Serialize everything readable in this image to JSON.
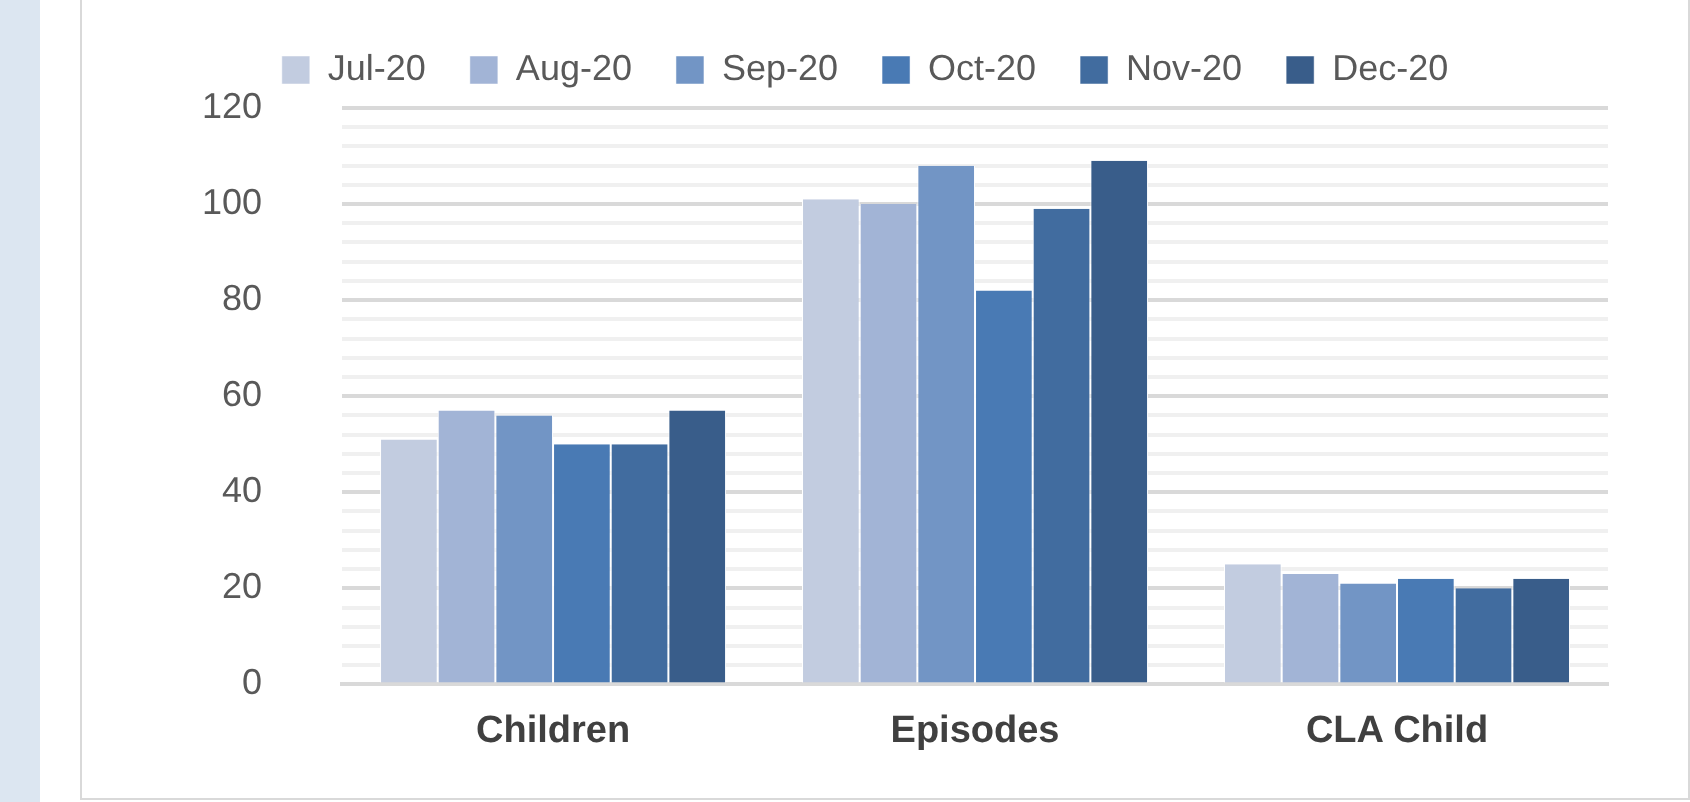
{
  "chart_data": {
    "type": "bar",
    "categories": [
      "Children",
      "Episodes",
      "CLA Child"
    ],
    "series": [
      {
        "name": "Jul-20",
        "color": "#c2cce0",
        "values": [
          51,
          101,
          25
        ]
      },
      {
        "name": "Aug-20",
        "color": "#a2b4d6",
        "values": [
          57,
          100,
          23
        ]
      },
      {
        "name": "Sep-20",
        "color": "#7295c5",
        "values": [
          56,
          108,
          21
        ]
      },
      {
        "name": "Oct-20",
        "color": "#497ab4",
        "values": [
          50,
          82,
          22
        ]
      },
      {
        "name": "Nov-20",
        "color": "#416c9f",
        "values": [
          50,
          99,
          20
        ]
      },
      {
        "name": "Dec-20",
        "color": "#395d8a",
        "values": [
          57,
          109,
          22
        ]
      }
    ],
    "ylim": [
      0,
      120
    ],
    "yticks": [
      0,
      {
        "value": 4,
        "label": null
      },
      {
        "value": 8,
        "label": null
      },
      {
        "value": 12,
        "label": null
      },
      {
        "value": 16,
        "label": null
      },
      20,
      {
        "value": 24,
        "label": null
      },
      {
        "value": 28,
        "label": null
      },
      {
        "value": 32,
        "label": null
      },
      {
        "value": 36,
        "label": null
      },
      40,
      {
        "value": 44,
        "label": null
      },
      {
        "value": 48,
        "label": null
      },
      {
        "value": 52,
        "label": null
      },
      {
        "value": 56,
        "label": null
      },
      60,
      {
        "value": 64,
        "label": null
      },
      {
        "value": 68,
        "label": null
      },
      {
        "value": 72,
        "label": null
      },
      {
        "value": 76,
        "label": null
      },
      80,
      {
        "value": 84,
        "label": null
      },
      {
        "value": 88,
        "label": null
      },
      {
        "value": 92,
        "label": null
      },
      {
        "value": 96,
        "label": null
      },
      100,
      {
        "value": 104,
        "label": null
      },
      {
        "value": 108,
        "label": null
      },
      {
        "value": 112,
        "label": null
      },
      {
        "value": 116,
        "label": null
      },
      120
    ],
    "grid": "y",
    "legend": "top"
  }
}
